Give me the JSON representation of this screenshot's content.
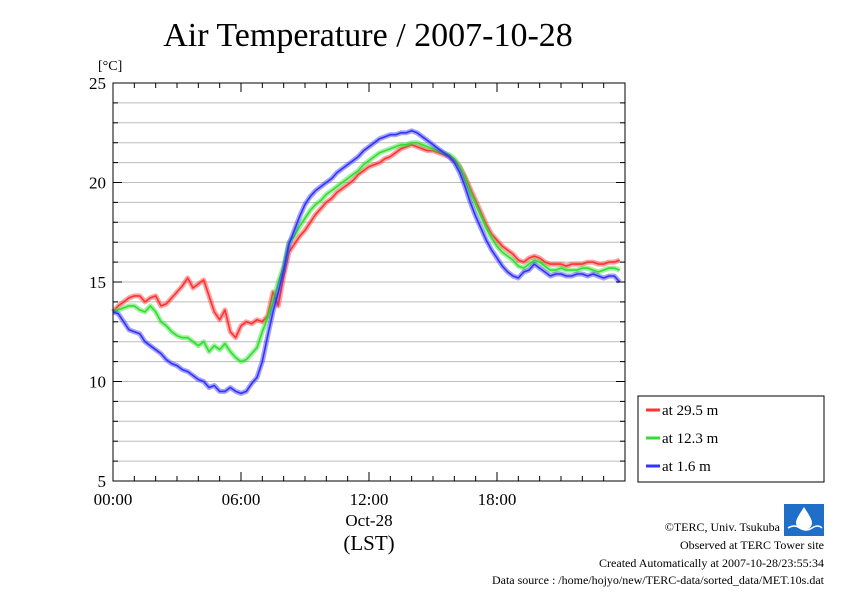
{
  "chart_data": {
    "type": "line",
    "title": "Air Temperature / 2007-10-28",
    "ylabel": "[°C]",
    "xlabel": "(LST)",
    "date_label": "Oct-28",
    "x_ticks": [
      "00:00",
      "06:00",
      "12:00",
      "18:00"
    ],
    "y_ticks": [
      "5",
      "10",
      "15",
      "20",
      "25"
    ],
    "xlim": [
      0,
      24
    ],
    "ylim": [
      5,
      25
    ],
    "grid": true,
    "legend_position": "bottom-right",
    "x": [
      0,
      0.25,
      0.5,
      0.75,
      1,
      1.25,
      1.5,
      1.75,
      2,
      2.25,
      2.5,
      2.75,
      3,
      3.25,
      3.5,
      3.75,
      4,
      4.25,
      4.5,
      4.75,
      5,
      5.25,
      5.5,
      5.75,
      6,
      6.25,
      6.5,
      6.75,
      7,
      7.25,
      7.5,
      7.75,
      8,
      8.25,
      8.5,
      8.75,
      9,
      9.25,
      9.5,
      9.75,
      10,
      10.25,
      10.5,
      10.75,
      11,
      11.25,
      11.5,
      11.75,
      12,
      12.25,
      12.5,
      12.75,
      13,
      13.25,
      13.5,
      13.75,
      14,
      14.25,
      14.5,
      14.75,
      15,
      15.25,
      15.5,
      15.75,
      16,
      16.25,
      16.5,
      16.75,
      17,
      17.25,
      17.5,
      17.75,
      18,
      18.25,
      18.5,
      18.75,
      19,
      19.25,
      19.5,
      19.75,
      20,
      20.25,
      20.5,
      20.75,
      21,
      21.25,
      21.5,
      21.75,
      22,
      22.25,
      22.5,
      22.75,
      23,
      23.25,
      23.5,
      23.75
    ],
    "series": [
      {
        "name": "at 29.5 m",
        "color": "#ff3333",
        "values": [
          13.5,
          13.8,
          14.0,
          14.2,
          14.3,
          14.3,
          14.0,
          14.2,
          14.3,
          13.8,
          13.9,
          14.2,
          14.5,
          14.8,
          15.2,
          14.7,
          14.9,
          15.1,
          14.3,
          13.5,
          13.1,
          13.6,
          12.5,
          12.2,
          12.8,
          13.0,
          12.9,
          13.1,
          13.0,
          13.3,
          14.5,
          13.8,
          15.3,
          16.5,
          16.9,
          17.3,
          17.6,
          18.0,
          18.4,
          18.7,
          19.0,
          19.2,
          19.5,
          19.7,
          19.9,
          20.1,
          20.4,
          20.6,
          20.8,
          20.9,
          21.0,
          21.2,
          21.3,
          21.5,
          21.7,
          21.8,
          21.9,
          21.8,
          21.7,
          21.6,
          21.6,
          21.5,
          21.4,
          21.3,
          21.1,
          20.8,
          20.3,
          19.7,
          19.1,
          18.5,
          17.9,
          17.4,
          17.1,
          16.8,
          16.6,
          16.4,
          16.1,
          16.0,
          16.2,
          16.3,
          16.2,
          16.0,
          15.9,
          15.9,
          15.9,
          15.8,
          15.9,
          15.9,
          15.9,
          16.0,
          16.0,
          15.9,
          15.9,
          16.0,
          16.0,
          16.1
        ]
      },
      {
        "name": "at 12.3 m",
        "color": "#33dd33",
        "values": [
          13.5,
          13.6,
          13.7,
          13.8,
          13.8,
          13.6,
          13.5,
          13.8,
          13.5,
          13.0,
          12.8,
          12.5,
          12.3,
          12.2,
          12.2,
          12.0,
          11.8,
          12.0,
          11.5,
          11.8,
          11.6,
          11.9,
          11.5,
          11.2,
          11.0,
          11.1,
          11.4,
          11.7,
          12.5,
          13.2,
          14.0,
          15.0,
          15.8,
          17.0,
          17.3,
          17.8,
          18.2,
          18.6,
          18.9,
          19.1,
          19.4,
          19.6,
          19.8,
          20.0,
          20.2,
          20.4,
          20.6,
          20.9,
          21.1,
          21.3,
          21.5,
          21.6,
          21.7,
          21.8,
          21.9,
          21.9,
          22.0,
          22.0,
          21.9,
          21.8,
          21.7,
          21.6,
          21.5,
          21.4,
          21.2,
          20.8,
          20.2,
          19.5,
          18.9,
          18.3,
          17.7,
          17.2,
          16.8,
          16.5,
          16.3,
          16.1,
          15.8,
          15.7,
          15.9,
          16.1,
          16.0,
          15.8,
          15.6,
          15.6,
          15.7,
          15.6,
          15.6,
          15.6,
          15.7,
          15.7,
          15.6,
          15.5,
          15.6,
          15.7,
          15.7,
          15.6
        ]
      },
      {
        "name": "at 1.6 m",
        "color": "#3333ff",
        "values": [
          13.5,
          13.4,
          13.0,
          12.6,
          12.5,
          12.4,
          12.0,
          11.8,
          11.6,
          11.4,
          11.1,
          10.9,
          10.8,
          10.6,
          10.5,
          10.3,
          10.1,
          10.0,
          9.7,
          9.8,
          9.5,
          9.5,
          9.7,
          9.5,
          9.4,
          9.5,
          9.9,
          10.2,
          11.0,
          12.3,
          13.5,
          14.5,
          15.6,
          16.9,
          17.6,
          18.3,
          18.9,
          19.3,
          19.6,
          19.8,
          20.0,
          20.2,
          20.5,
          20.7,
          20.9,
          21.1,
          21.3,
          21.6,
          21.8,
          22.0,
          22.2,
          22.3,
          22.4,
          22.4,
          22.5,
          22.5,
          22.6,
          22.5,
          22.3,
          22.1,
          21.9,
          21.7,
          21.5,
          21.3,
          21.0,
          20.5,
          19.8,
          19.0,
          18.3,
          17.7,
          17.1,
          16.6,
          16.2,
          15.8,
          15.5,
          15.3,
          15.2,
          15.5,
          15.6,
          15.9,
          15.7,
          15.5,
          15.3,
          15.4,
          15.4,
          15.3,
          15.3,
          15.4,
          15.4,
          15.3,
          15.4,
          15.3,
          15.2,
          15.3,
          15.3,
          15.0
        ]
      }
    ]
  },
  "footer": {
    "copyright": "©TERC, Univ. Tsukuba",
    "site": "Observed at TERC Tower site",
    "created": "Created Automatically at 2007-10-28/23:55:34",
    "source": "Data source : /home/hojyo/new/TERC-data/sorted_data/MET.10s.dat"
  }
}
